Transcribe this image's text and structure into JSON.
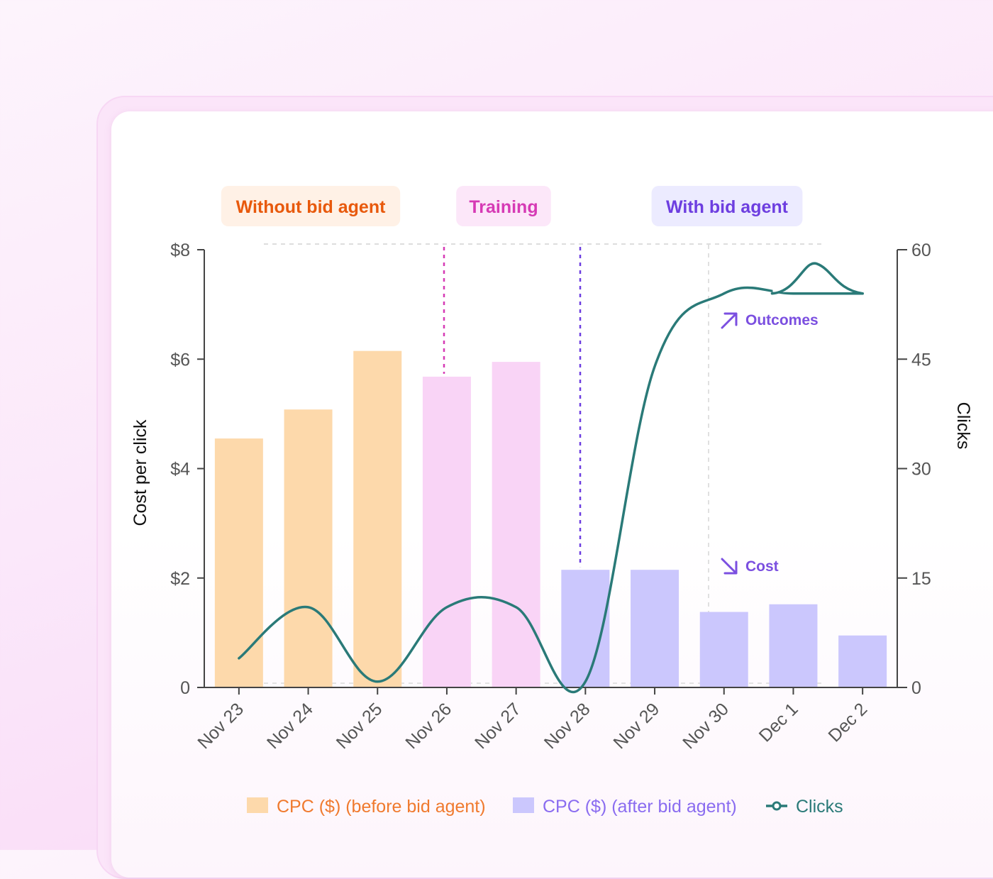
{
  "chart_data": {
    "type": "bar",
    "categories": [
      "Nov 23",
      "Nov 24",
      "Nov 25",
      "Nov 26",
      "Nov 27",
      "Nov 28",
      "Nov 29",
      "Nov 30",
      "Dec 1",
      "Dec 2"
    ],
    "series": [
      {
        "name": "CPC ($) (before bid agent)",
        "type": "bar",
        "axis": "left",
        "values": [
          4.55,
          5.08,
          6.15,
          5.68,
          5.95,
          2.15,
          2.15,
          1.38,
          1.52,
          0.95
        ]
      },
      {
        "name": "Clicks",
        "type": "line",
        "axis": "right",
        "values": [
          4,
          11,
          0.8,
          11,
          11,
          0.8,
          44,
          54,
          54,
          54
        ]
      }
    ],
    "phases": [
      {
        "label": "Without bid agent",
        "color": "#e8590c",
        "bg": "#fff1e6",
        "bar_color": "#fdd9ab"
      },
      {
        "label": "Training",
        "color": "#d63ab5",
        "bg": "#fce7f9",
        "bar_color": "#f9d4f6"
      },
      {
        "label": "With bid agent",
        "color": "#6d3ee0",
        "bg": "#ecebff",
        "bar_color": "#cbc7fd"
      }
    ],
    "bar_phase": [
      0,
      0,
      0,
      1,
      1,
      2,
      2,
      2,
      2,
      2
    ],
    "y_left": {
      "label": "Cost per click",
      "ticks": [
        0,
        2,
        4,
        6,
        8
      ],
      "tick_labels": [
        "0",
        "$2",
        "$4",
        "$6",
        "$8"
      ],
      "range": [
        0,
        8
      ]
    },
    "y_right": {
      "label": "Clicks",
      "ticks": [
        0,
        15,
        30,
        45,
        60
      ],
      "tick_labels": [
        "0",
        "15",
        "30",
        "45",
        "60"
      ],
      "range": [
        0,
        60
      ]
    },
    "annotations": [
      {
        "text": "Outcomes",
        "icon": "arrow-up-right-icon"
      },
      {
        "text": "Cost",
        "icon": "arrow-down-right-icon"
      }
    ],
    "legend": [
      {
        "label": "CPC ($) (before bid agent)",
        "color": "#f07a2e",
        "swatch": "#fdd9ab",
        "kind": "bar"
      },
      {
        "label": "CPC ($) (after bid agent)",
        "color": "#8a6cf0",
        "swatch": "#cbc7fd",
        "kind": "bar"
      },
      {
        "label": "Clicks",
        "color": "#2a7a78",
        "kind": "line"
      }
    ],
    "line_color": "#2a7a78",
    "legend_placement": "bottom",
    "grid": false
  }
}
